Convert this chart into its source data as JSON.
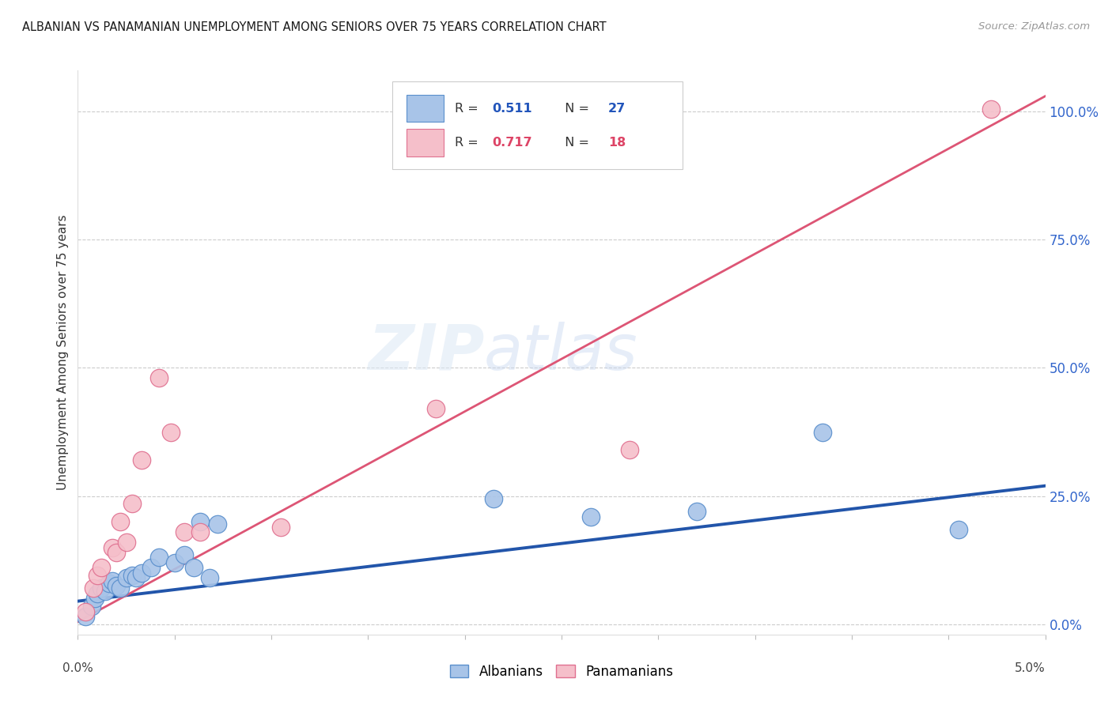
{
  "title": "ALBANIAN VS PANAMANIAN UNEMPLOYMENT AMONG SENIORS OVER 75 YEARS CORRELATION CHART",
  "source": "Source: ZipAtlas.com",
  "ylabel": "Unemployment Among Seniors over 75 years",
  "xlim": [
    0.0,
    5.0
  ],
  "ylim": [
    -2.0,
    108.0
  ],
  "yticks_right": [
    0.0,
    25.0,
    50.0,
    75.0,
    100.0
  ],
  "legend_r_albanian": "0.511",
  "legend_n_albanian": "27",
  "legend_r_panamanian": "0.717",
  "legend_n_panamanian": "18",
  "albanian_color": "#a8c4e8",
  "albanian_edge_color": "#5a8fcc",
  "albanian_line_color": "#2255aa",
  "panamanian_color": "#f5bfca",
  "panamanian_edge_color": "#e07090",
  "panamanian_line_color": "#dd5575",
  "watermark_top": "ZIP",
  "watermark_bottom": "atlas",
  "albanian_x": [
    0.04,
    0.07,
    0.09,
    0.1,
    0.12,
    0.14,
    0.16,
    0.18,
    0.2,
    0.22,
    0.25,
    0.28,
    0.3,
    0.33,
    0.38,
    0.42,
    0.5,
    0.55,
    0.6,
    0.63,
    0.68,
    0.72,
    2.15,
    2.65,
    3.2,
    3.85,
    4.55
  ],
  "albanian_y": [
    1.5,
    3.5,
    5.0,
    6.0,
    7.0,
    6.5,
    8.0,
    8.5,
    7.5,
    7.0,
    9.0,
    9.5,
    9.0,
    10.0,
    11.0,
    13.0,
    12.0,
    13.5,
    11.0,
    20.0,
    9.0,
    19.5,
    24.5,
    21.0,
    22.0,
    37.5,
    18.5
  ],
  "panamanian_x": [
    0.04,
    0.08,
    0.1,
    0.12,
    0.18,
    0.2,
    0.22,
    0.25,
    0.28,
    0.33,
    0.42,
    0.48,
    0.55,
    0.63,
    1.05,
    1.85,
    2.85,
    4.72
  ],
  "panamanian_y": [
    2.5,
    7.0,
    9.5,
    11.0,
    15.0,
    14.0,
    20.0,
    16.0,
    23.5,
    32.0,
    48.0,
    37.5,
    18.0,
    18.0,
    19.0,
    42.0,
    34.0,
    100.5
  ],
  "albanian_slope": 4.5,
  "albanian_intercept": 4.5,
  "panamanian_slope": 20.5,
  "panamanian_intercept": 0.5
}
